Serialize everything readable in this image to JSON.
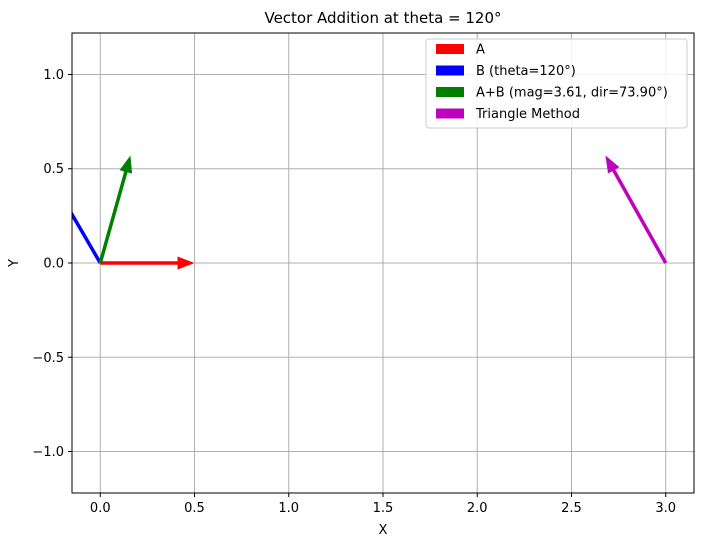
{
  "chart_data": {
    "type": "quiver",
    "title": "Vector Addition at theta = 120°",
    "xlabel": "X",
    "ylabel": "Y",
    "xlim": [
      -0.15,
      3.15
    ],
    "ylim": [
      -1.22,
      1.22
    ],
    "x_ticks": [
      0.0,
      0.5,
      1.0,
      1.5,
      2.0,
      2.5,
      3.0
    ],
    "x_tick_labels": [
      "0.0",
      "0.5",
      "1.0",
      "1.5",
      "2.0",
      "2.5",
      "3.0"
    ],
    "y_ticks": [
      -1.0,
      -0.5,
      0.0,
      0.5,
      1.0
    ],
    "y_tick_labels": [
      "−1.0",
      "−0.5",
      "0.0",
      "0.5",
      "1.0"
    ],
    "grid": true,
    "legend_position": "top-right",
    "series": [
      {
        "name": "A",
        "color": "#ff0000",
        "x": 0.0,
        "y": 0.0,
        "dx": 0.5,
        "dy": 0.0
      },
      {
        "name": "B (theta=120°)",
        "color": "#0000ff",
        "x": 0.0,
        "y": 0.0,
        "dx": -0.32,
        "dy": 0.55
      },
      {
        "name": "A+B (mag=3.61, dir=73.90°)",
        "color": "#008000",
        "x": 0.0,
        "y": 0.0,
        "dx": 0.16,
        "dy": 0.57
      },
      {
        "name": "Triangle Method",
        "color": "#bf00bf",
        "x": 3.0,
        "y": 0.0,
        "dx": -0.32,
        "dy": 0.57
      }
    ]
  }
}
